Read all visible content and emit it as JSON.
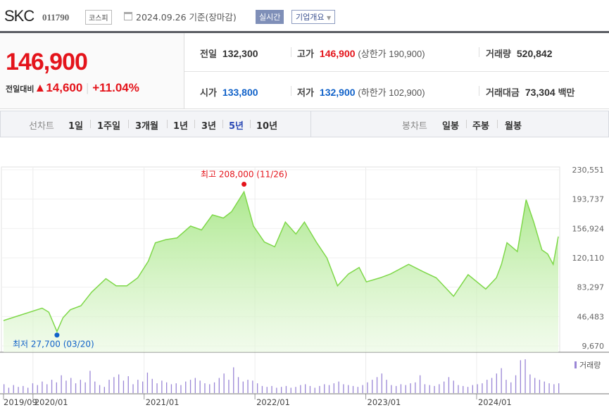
{
  "header": {
    "name": "SKC",
    "code": "011790",
    "market": "코스피",
    "date": "2024.09.26 기준(장마감)",
    "realtime": "실시간",
    "company_info": "기업개요"
  },
  "quote": {
    "price": "146,900",
    "change_label": "전일대비",
    "change": "14,600",
    "change_pct": "+11.04%",
    "direction": "up",
    "prev_label": "전일",
    "prev": "132,300",
    "high_label": "고가",
    "high": "146,900",
    "upper_limit": "(상한가 190,900)",
    "volume_label": "거래량",
    "volume": "520,842",
    "open_label": "시가",
    "open": "133,800",
    "low_label": "저가",
    "low": "132,900",
    "lower_limit": "(하한가 102,900)",
    "value_label": "거래대금",
    "value": "73,304",
    "value_unit": "백만"
  },
  "tabs": {
    "line_label": "선차트",
    "line": [
      "1일",
      "1주일",
      "3개월",
      "1년",
      "3년",
      "5년",
      "10년"
    ],
    "selected": "5년",
    "candle_label": "봉차트",
    "candle": [
      "일봉",
      "주봉",
      "월봉"
    ]
  },
  "colors": {
    "up": "#e4141b",
    "down": "#1162c9",
    "line": "#7fd84a",
    "volume": "#9a86d6"
  },
  "chart_data": {
    "type": "area",
    "x_range": [
      "2019-09-26",
      "2024-09-26"
    ],
    "ylim": [
      9670,
      230551
    ],
    "y_ticks": [
      "230,551",
      "193,737",
      "156,924",
      "120,110",
      "83,297",
      "46,483",
      "9,670"
    ],
    "x_ticks": [
      {
        "date": "2019-09-26",
        "label": "2019/09"
      },
      {
        "date": "2020-01-01",
        "label": "2020/01"
      },
      {
        "date": "2021-01-01",
        "label": "2021/01"
      },
      {
        "date": "2022-01-01",
        "label": "2022/01"
      },
      {
        "date": "2023-01-01",
        "label": "2023/01"
      },
      {
        "date": "2024-01-01",
        "label": "2024/01"
      }
    ],
    "high_annotation": {
      "text": "최고 208,000 (11/26)",
      "date": "2021-11-26",
      "value": 208000
    },
    "low_annotation": {
      "text": "최저 27,700 (03/20)",
      "date": "2020-03-20",
      "value": 27700
    },
    "volume_legend": "거래량",
    "series": [
      [
        "2019-09-26",
        41500
      ],
      [
        "2019-11-22",
        48500
      ],
      [
        "2020-01-31",
        57000
      ],
      [
        "2020-02-22",
        52000
      ],
      [
        "2020-03-20",
        27700
      ],
      [
        "2020-04-09",
        45000
      ],
      [
        "2020-05-03",
        55000
      ],
      [
        "2020-06-07",
        60000
      ],
      [
        "2020-07-12",
        77000
      ],
      [
        "2020-08-28",
        94000
      ],
      [
        "2020-10-01",
        85000
      ],
      [
        "2020-11-05",
        85000
      ],
      [
        "2020-12-11",
        95000
      ],
      [
        "2021-01-15",
        116000
      ],
      [
        "2021-02-07",
        139000
      ],
      [
        "2021-03-14",
        143000
      ],
      [
        "2021-04-19",
        145000
      ],
      [
        "2021-06-03",
        160000
      ],
      [
        "2021-07-09",
        155000
      ],
      [
        "2021-08-14",
        174000
      ],
      [
        "2021-09-19",
        170000
      ],
      [
        "2021-10-16",
        178000
      ],
      [
        "2021-11-26",
        203000
      ],
      [
        "2021-12-27",
        160000
      ],
      [
        "2022-02-01",
        140000
      ],
      [
        "2022-03-07",
        134000
      ],
      [
        "2022-04-11",
        165000
      ],
      [
        "2022-05-16",
        150000
      ],
      [
        "2022-06-13",
        165000
      ],
      [
        "2022-07-22",
        140000
      ],
      [
        "2022-08-26",
        120000
      ],
      [
        "2022-09-30",
        85000
      ],
      [
        "2022-11-05",
        100000
      ],
      [
        "2022-12-10",
        108000
      ],
      [
        "2023-01-03",
        90000
      ],
      [
        "2023-02-17",
        95000
      ],
      [
        "2023-03-24",
        100000
      ],
      [
        "2023-05-22",
        112000
      ],
      [
        "2023-07-08",
        103000
      ],
      [
        "2023-08-21",
        95000
      ],
      [
        "2023-10-17",
        72000
      ],
      [
        "2023-12-04",
        99000
      ],
      [
        "2024-01-31",
        81000
      ],
      [
        "2024-03-06",
        95000
      ],
      [
        "2024-03-23",
        112000
      ],
      [
        "2024-04-10",
        139000
      ],
      [
        "2024-05-14",
        128000
      ],
      [
        "2024-06-12",
        193000
      ],
      [
        "2024-07-07",
        165000
      ],
      [
        "2024-08-03",
        130000
      ],
      [
        "2024-08-22",
        125000
      ],
      [
        "2024-09-09",
        112000
      ],
      [
        "2024-09-26",
        146900
      ]
    ],
    "volume_relative": [
      20,
      12,
      18,
      14,
      16,
      12,
      22,
      18,
      26,
      20,
      30,
      24,
      40,
      28,
      34,
      22,
      30,
      24,
      50,
      26,
      18,
      14,
      30,
      36,
      42,
      28,
      38,
      20,
      30,
      26,
      46,
      32,
      22,
      28,
      24,
      20,
      22,
      18,
      26,
      30,
      34,
      28,
      22,
      20,
      24,
      34,
      44,
      30,
      58,
      36,
      26,
      30,
      28,
      22,
      16,
      14,
      16,
      12,
      14,
      16,
      12,
      14,
      18,
      20,
      16,
      12,
      16,
      20,
      18,
      22,
      26,
      20,
      18,
      16,
      14,
      18,
      24,
      30,
      36,
      44,
      30,
      18,
      16,
      20,
      18,
      22,
      24,
      40,
      20,
      18,
      16,
      20,
      26,
      36,
      28,
      18,
      16,
      14,
      18,
      20,
      22,
      30,
      34,
      44,
      56,
      30,
      24,
      40,
      74,
      76,
      42,
      34,
      30,
      26,
      22,
      20,
      22
    ]
  }
}
